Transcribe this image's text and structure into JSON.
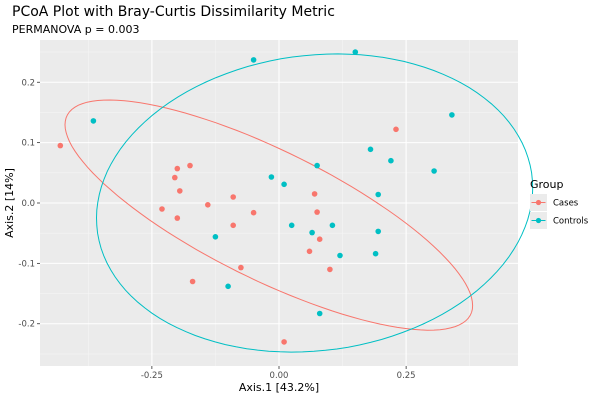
{
  "chart_data": {
    "type": "scatter",
    "title": "PCoA Plot with Bray-Curtis Dissimilarity Metric",
    "subtitle": "PERMANOVA p = 0.003",
    "xlabel": "Axis.1   [43.2%]",
    "ylabel": "Axis.2   [14%]",
    "xlim": [
      -0.47,
      0.47
    ],
    "ylim": [
      -0.27,
      0.27
    ],
    "x_ticks": [
      -0.25,
      0.0,
      0.25
    ],
    "x_tick_labels": [
      "-0.25",
      "0.00",
      "0.25"
    ],
    "y_ticks": [
      -0.2,
      -0.1,
      0.0,
      0.1,
      0.2
    ],
    "y_tick_labels": [
      "-0.2",
      "-0.1",
      "0.0",
      "0.1",
      "0.2"
    ],
    "grid": true,
    "legend": {
      "title": "Group",
      "position": "right"
    },
    "series": [
      {
        "name": "Cases",
        "color": "#F8766D",
        "points": [
          [
            -0.43,
            0.095
          ],
          [
            -0.2,
            0.057
          ],
          [
            -0.175,
            0.062
          ],
          [
            -0.205,
            0.042
          ],
          [
            -0.195,
            0.02
          ],
          [
            -0.23,
            -0.01
          ],
          [
            -0.2,
            -0.025
          ],
          [
            -0.14,
            -0.003
          ],
          [
            -0.09,
            0.01
          ],
          [
            -0.09,
            -0.037
          ],
          [
            -0.05,
            -0.016
          ],
          [
            -0.075,
            -0.107
          ],
          [
            -0.17,
            -0.13
          ],
          [
            0.01,
            -0.23
          ],
          [
            0.07,
            0.015
          ],
          [
            0.075,
            -0.015
          ],
          [
            0.08,
            -0.06
          ],
          [
            0.06,
            -0.08
          ],
          [
            0.1,
            -0.11
          ],
          [
            0.23,
            0.122
          ]
        ],
        "ellipse": {
          "cx": -0.02,
          "cy": -0.02,
          "rx": 0.43,
          "ry": 0.11,
          "angle_deg": -22
        }
      },
      {
        "name": "Controls",
        "color": "#00BFC4",
        "points": [
          [
            -0.365,
            0.136
          ],
          [
            -0.05,
            0.237
          ],
          [
            0.15,
            0.25
          ],
          [
            0.34,
            0.146
          ],
          [
            0.305,
            0.053
          ],
          [
            0.22,
            0.07
          ],
          [
            0.18,
            0.089
          ],
          [
            0.075,
            0.062
          ],
          [
            -0.015,
            0.043
          ],
          [
            0.01,
            0.031
          ],
          [
            0.195,
            0.014
          ],
          [
            0.025,
            -0.037
          ],
          [
            0.065,
            -0.049
          ],
          [
            0.105,
            -0.037
          ],
          [
            0.195,
            -0.047
          ],
          [
            -0.125,
            -0.056
          ],
          [
            0.12,
            -0.087
          ],
          [
            0.19,
            -0.084
          ],
          [
            -0.1,
            -0.138
          ],
          [
            0.08,
            -0.183
          ]
        ],
        "ellipse": {
          "cx": 0.07,
          "cy": 0.0,
          "rx": 0.43,
          "ry": 0.245,
          "angle_deg": 5
        }
      }
    ]
  }
}
